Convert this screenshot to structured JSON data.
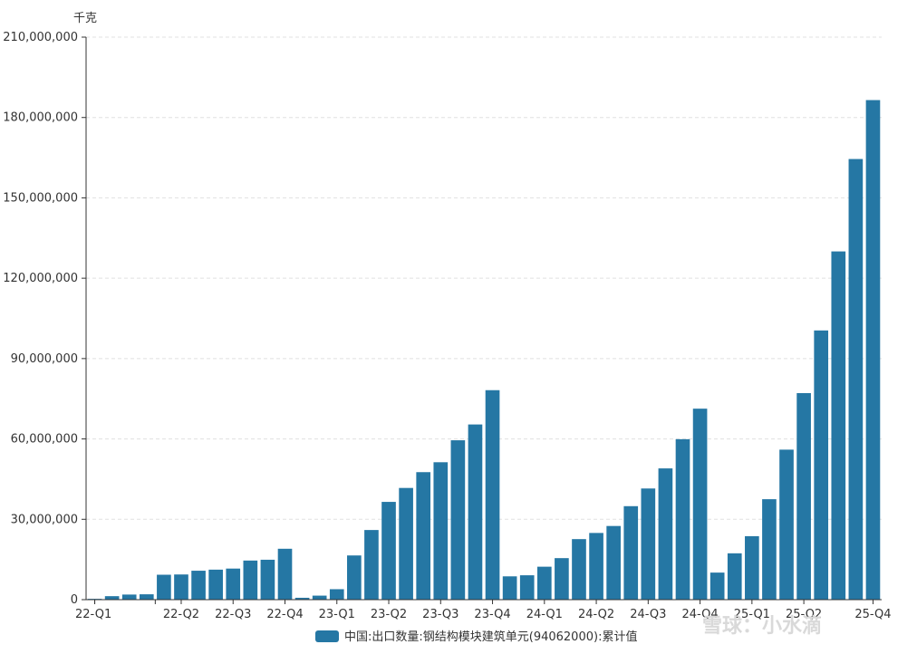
{
  "chart_data": {
    "type": "bar",
    "unit": "千克",
    "ylim": [
      0,
      210000000
    ],
    "yticks": [
      "0",
      "30,000,000",
      "60,000,000",
      "90,000,000",
      "120,000,000",
      "150,000,000",
      "180,000,000",
      "210,000,000"
    ],
    "ytick_values": [
      0,
      30000000,
      60000000,
      90000000,
      120000000,
      150000000,
      180000000,
      210000000
    ],
    "grid": true,
    "x_quarter_labels": [
      {
        "label": "22-Q1",
        "index": 0
      },
      {
        "label": "22-Q2",
        "index": 5
      },
      {
        "label": "22-Q3",
        "index": 8
      },
      {
        "label": "22-Q4",
        "index": 11
      },
      {
        "label": "23-Q1",
        "index": 14
      },
      {
        "label": "23-Q2",
        "index": 17
      },
      {
        "label": "23-Q3",
        "index": 20
      },
      {
        "label": "23-Q4",
        "index": 23
      },
      {
        "label": "24-Q1",
        "index": 26
      },
      {
        "label": "24-Q2",
        "index": 29
      },
      {
        "label": "24-Q3",
        "index": 32
      },
      {
        "label": "24-Q4",
        "index": 35
      },
      {
        "label": "25-Q1",
        "index": 38
      },
      {
        "label": "25-Q2",
        "index": 41
      },
      {
        "label": "25-Q4",
        "index": 45
      }
    ],
    "series": [
      {
        "name": "中国:出口数量:钢结构模块建筑单元(94062000):累计值",
        "color": "#2577a4",
        "values": [
          300000,
          1300000,
          1900000,
          2000000,
          9300000,
          9400000,
          10800000,
          11200000,
          11600000,
          14600000,
          14900000,
          19000000,
          700000,
          1500000,
          3900000,
          16500000,
          26000000,
          36500000,
          41700000,
          47600000,
          51300000,
          59500000,
          65400000,
          78200000,
          8700000,
          9100000,
          12300000,
          15500000,
          22600000,
          24900000,
          27500000,
          34900000,
          41500000,
          49000000,
          59900000,
          71300000,
          10100000,
          17300000,
          23700000,
          37500000,
          56000000,
          77100000,
          100500000,
          130000000,
          164500000,
          186500000
        ]
      }
    ],
    "legend": {
      "position": "bottom"
    }
  },
  "watermark": "雪球：小水滴"
}
